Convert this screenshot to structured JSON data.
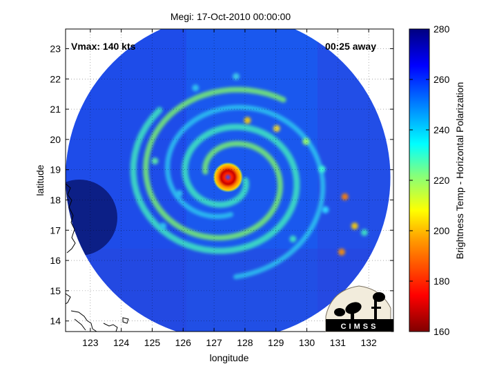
{
  "chart_data": {
    "type": "heatmap",
    "title": "Megi: 17-Oct-2010 00:00:00",
    "xlabel": "longitude",
    "ylabel": "latitude",
    "xlim": [
      122.2,
      132.8
    ],
    "ylim": [
      13.65,
      23.65
    ],
    "xticks": [
      123,
      124,
      125,
      126,
      127,
      128,
      129,
      130,
      131,
      132
    ],
    "yticks": [
      14,
      15,
      16,
      17,
      18,
      19,
      20,
      21,
      22,
      23
    ],
    "grid": true,
    "annotations": {
      "left": "Vmax: 140 kts",
      "right": "00:25 away"
    },
    "colorbar": {
      "label": "Brightness Temp - Horizontal Polarization",
      "range": [
        160,
        280
      ],
      "ticks": [
        160,
        180,
        200,
        220,
        240,
        260,
        280
      ],
      "colormap": "jet"
    },
    "storm_center": {
      "lon": 127.45,
      "lat": 18.75
    },
    "swath": {
      "center_lon": 127.45,
      "center_lat": 18.75,
      "radius_deg": 5.25
    },
    "logo": "CIMSS"
  }
}
